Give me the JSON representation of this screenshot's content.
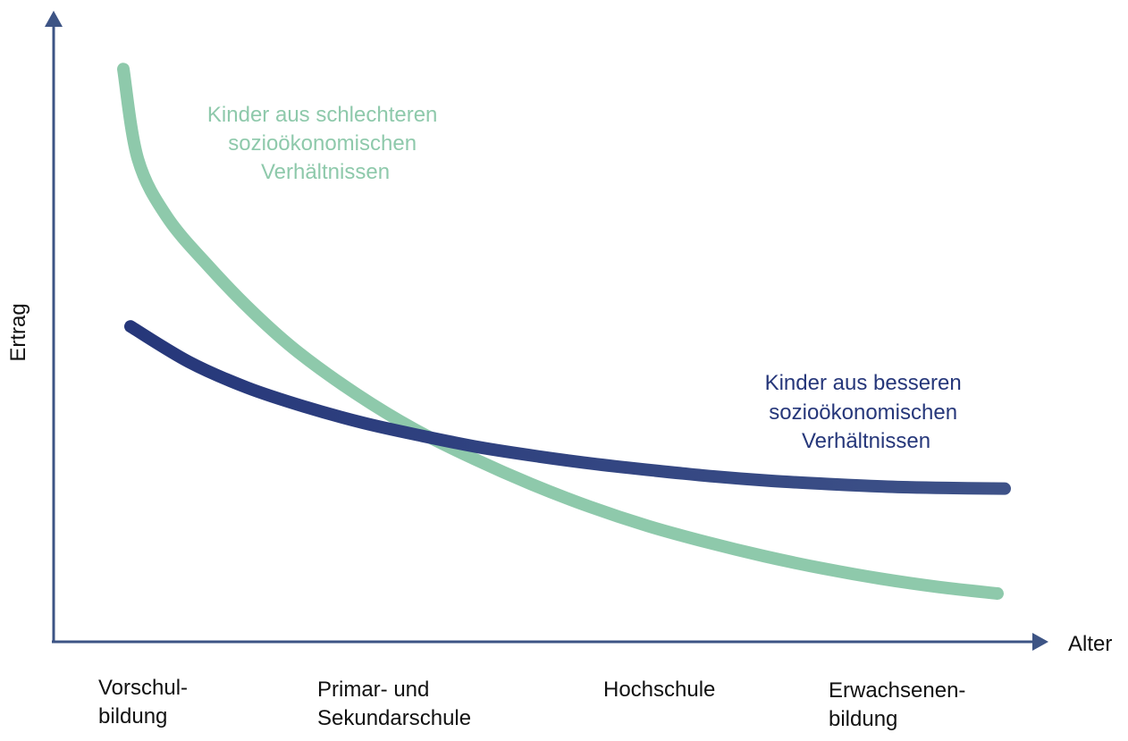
{
  "chart_data": {
    "type": "line",
    "title": "",
    "xlabel": "Alter",
    "ylabel": "Ertrag",
    "grid": false,
    "legend": "none",
    "categories": [
      [
        "Vorschul-",
        "bildung"
      ],
      [
        "Primar- und",
        "Sekundarschule"
      ],
      [
        "Hochschule"
      ],
      [
        "Erwachsenen-",
        "bildung"
      ]
    ],
    "series": [
      {
        "name": "Kinder aus schlechteren sozioökonomischen Verhältnissen",
        "label_lines": [
          "Kinder aus schlechteren",
          "sozioökonomischen",
          "Verhältnissen"
        ],
        "color": "#8ec9ab",
        "values": [
          [
            0.0,
            8.9
          ],
          [
            0.05,
            7.5
          ],
          [
            0.15,
            6.6
          ],
          [
            0.3,
            5.8
          ],
          [
            0.45,
            5.1
          ],
          [
            0.6,
            4.5
          ],
          [
            0.8,
            3.85
          ],
          [
            1.0,
            3.3
          ],
          [
            1.2,
            2.85
          ],
          [
            1.4,
            2.45
          ],
          [
            1.6,
            2.1
          ],
          [
            1.8,
            1.8
          ],
          [
            2.0,
            1.55
          ],
          [
            2.2,
            1.33
          ],
          [
            2.4,
            1.14
          ],
          [
            2.6,
            0.98
          ],
          [
            2.8,
            0.85
          ],
          [
            3.0,
            0.75
          ]
        ]
      },
      {
        "name": "Kinder aus besseren sozioökonomischen Verhältnissen",
        "label_lines": [
          "Kinder aus besseren",
          "sozioökonomischen",
          "Verhältnissen"
        ],
        "color": "#26377a",
        "color_end": "#3e5288",
        "values": [
          [
            0.0,
            4.9
          ],
          [
            0.2,
            4.35
          ],
          [
            0.4,
            3.95
          ],
          [
            0.6,
            3.65
          ],
          [
            0.8,
            3.4
          ],
          [
            1.0,
            3.2
          ],
          [
            1.2,
            3.02
          ],
          [
            1.4,
            2.88
          ],
          [
            1.6,
            2.76
          ],
          [
            1.8,
            2.66
          ],
          [
            2.0,
            2.57
          ],
          [
            2.2,
            2.5
          ],
          [
            2.4,
            2.45
          ],
          [
            2.6,
            2.41
          ],
          [
            2.8,
            2.39
          ],
          [
            3.0,
            2.38
          ]
        ]
      }
    ],
    "xlim": [
      0,
      3
    ],
    "ylim": [
      0,
      9
    ],
    "axis_color": "#3d5485"
  }
}
